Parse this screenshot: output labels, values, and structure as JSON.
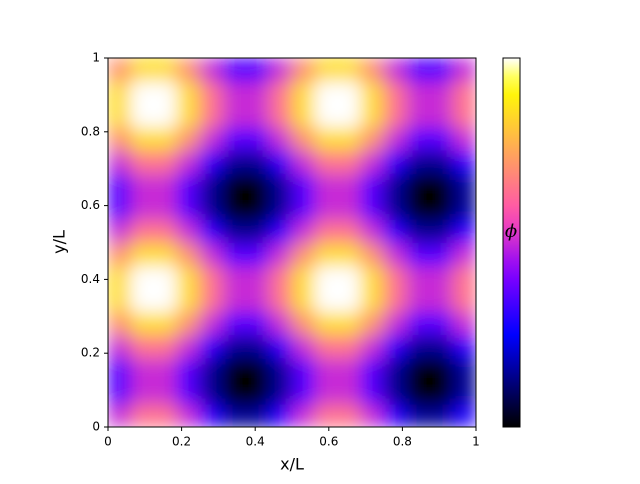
{
  "chart_data": {
    "type": "heatmap",
    "xlabel": "x/L",
    "ylabel": "y/L",
    "colorbar_label": "ϕ",
    "colormap": "gnuplot2",
    "xlim": [
      0,
      1
    ],
    "ylim": [
      0,
      1
    ],
    "xticks": [
      0,
      0.2,
      0.4,
      0.6,
      0.8,
      1
    ],
    "yticks": [
      0,
      0.2,
      0.4,
      0.6,
      0.8,
      1
    ],
    "clim": [
      -1.85,
      1.85
    ],
    "z": [
      [
        0,
        0.54,
        0.54,
        0,
        -0.77,
        -1.31,
        -1.31,
        -0.77,
        0,
        0.54,
        0.54,
        0,
        -0.77,
        -1.31,
        -1.31,
        -0.77
      ],
      [
        -0.54,
        0,
        0,
        -0.54,
        -1.31,
        -1.85,
        -1.85,
        -1.31,
        -0.54,
        0,
        0,
        -0.54,
        -1.31,
        -1.85,
        -1.85,
        -1.31
      ],
      [
        -0.54,
        0,
        0,
        -0.54,
        -1.31,
        -1.85,
        -1.85,
        -1.31,
        -0.54,
        0,
        0,
        -0.54,
        -1.31,
        -1.85,
        -1.85,
        -1.31
      ],
      [
        0,
        0.54,
        0.54,
        0,
        -0.77,
        -1.31,
        -1.31,
        -0.77,
        0,
        0.54,
        0.54,
        0,
        -0.77,
        -1.31,
        -1.31,
        -0.77
      ],
      [
        0.77,
        1.31,
        1.31,
        0.77,
        0,
        -0.54,
        -0.54,
        0,
        0.77,
        1.31,
        1.31,
        0.77,
        0,
        -0.54,
        -0.54,
        0
      ],
      [
        1.31,
        1.85,
        1.85,
        1.31,
        0.54,
        0,
        0,
        0.54,
        1.31,
        1.85,
        1.85,
        1.31,
        0.54,
        0,
        0,
        0.54
      ],
      [
        1.31,
        1.85,
        1.85,
        1.31,
        0.54,
        0,
        0,
        0.54,
        1.31,
        1.85,
        1.85,
        1.31,
        0.54,
        0,
        0,
        0.54
      ],
      [
        0.77,
        1.31,
        1.31,
        0.77,
        0,
        -0.54,
        -0.54,
        0,
        0.77,
        1.31,
        1.31,
        0.77,
        0,
        -0.54,
        -0.54,
        0
      ],
      [
        0,
        0.54,
        0.54,
        0,
        -0.77,
        -1.31,
        -1.31,
        -0.77,
        0,
        0.54,
        0.54,
        0,
        -0.77,
        -1.31,
        -1.31,
        -0.77
      ],
      [
        -0.54,
        0,
        0,
        -0.54,
        -1.31,
        -1.85,
        -1.85,
        -1.31,
        -0.54,
        0,
        0,
        -0.54,
        -1.31,
        -1.85,
        -1.85,
        -1.31
      ],
      [
        -0.54,
        0,
        0,
        -0.54,
        -1.31,
        -1.85,
        -1.85,
        -1.31,
        -0.54,
        0,
        0,
        -0.54,
        -1.31,
        -1.85,
        -1.85,
        -1.31
      ],
      [
        0,
        0.54,
        0.54,
        0,
        -0.77,
        -1.31,
        -1.31,
        -0.77,
        0,
        0.54,
        0.54,
        0,
        -0.77,
        -1.31,
        -1.31,
        -0.77
      ],
      [
        0.77,
        1.31,
        1.31,
        0.77,
        0,
        -0.54,
        -0.54,
        0,
        0.77,
        1.31,
        1.31,
        0.77,
        0,
        -0.54,
        -0.54,
        0
      ],
      [
        1.31,
        1.85,
        1.85,
        1.31,
        0.54,
        0,
        0,
        0.54,
        1.31,
        1.85,
        1.85,
        1.31,
        0.54,
        0,
        0,
        0.54
      ],
      [
        1.31,
        1.85,
        1.85,
        1.31,
        0.54,
        0,
        0,
        0.54,
        1.31,
        1.85,
        1.85,
        1.31,
        0.54,
        0,
        0,
        0.54
      ],
      [
        0.77,
        1.31,
        1.31,
        0.77,
        0,
        -0.54,
        -0.54,
        0,
        0.77,
        1.31,
        1.31,
        0.77,
        0,
        -0.54,
        -0.54,
        0
      ]
    ]
  }
}
